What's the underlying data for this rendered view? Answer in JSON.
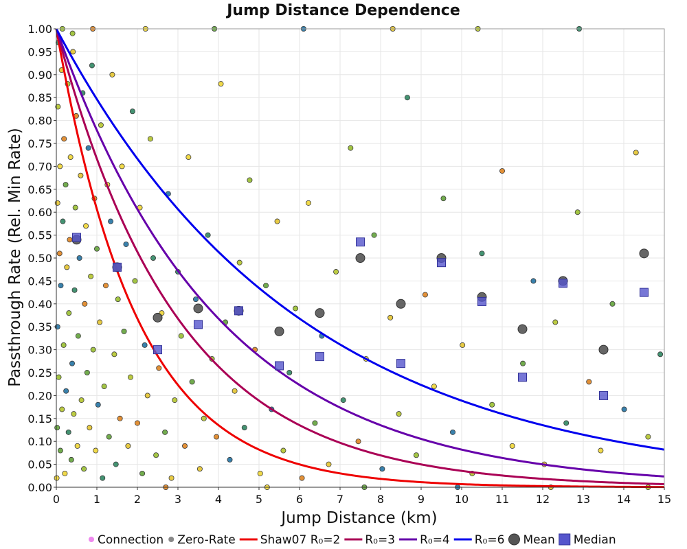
{
  "chart_data": {
    "type": "scatter",
    "title": "Jump Distance Dependence",
    "xlabel": "Jump Distance (km)",
    "ylabel": "Passthrough Rate (Rel. Min Rate)",
    "xlim": [
      0,
      15
    ],
    "ylim": [
      0,
      1
    ],
    "grid": true,
    "x_ticks": [
      0,
      1,
      2,
      3,
      4,
      5,
      6,
      7,
      8,
      9,
      10,
      11,
      12,
      13,
      14,
      15
    ],
    "x_tick_labels": [
      "0",
      "1",
      "2",
      "3",
      "4",
      "5",
      "6",
      "7",
      "8",
      "9",
      "10",
      "11",
      "12",
      "13",
      "14",
      "15"
    ],
    "y_ticks": [
      0,
      0.05,
      0.1,
      0.15,
      0.2,
      0.25,
      0.3,
      0.35,
      0.4,
      0.45,
      0.5,
      0.55,
      0.6,
      0.65,
      0.7,
      0.75,
      0.8,
      0.85,
      0.9,
      0.95,
      1.0
    ],
    "y_tick_labels": [
      "0.00",
      "0.05",
      "0.10",
      "0.15",
      "0.20",
      "0.25",
      "0.30",
      "0.35",
      "0.40",
      "0.45",
      "0.50",
      "0.55",
      "0.60",
      "0.65",
      "0.70",
      "0.75",
      "0.80",
      "0.85",
      "0.90",
      "0.95",
      "1.00"
    ],
    "legend_position": "bottom",
    "legend": [
      {
        "label": "Connection",
        "kind": "dot",
        "color": "#ee88ee"
      },
      {
        "label": "Zero-Rate",
        "kind": "dot",
        "color": "#888888"
      },
      {
        "label": "Shaw07 R₀=2",
        "kind": "line",
        "color": "#ee0000"
      },
      {
        "label": "R₀=3",
        "kind": "line",
        "color": "#aa0055"
      },
      {
        "label": "R₀=4",
        "kind": "line",
        "color": "#6600aa"
      },
      {
        "label": "R₀=6",
        "kind": "line",
        "color": "#0000ee"
      },
      {
        "label": "Mean",
        "kind": "circle",
        "color": "#555555"
      },
      {
        "label": "Median",
        "kind": "square",
        "color": "#5555cc"
      }
    ],
    "curves": [
      {
        "name": "Shaw07 R₀=2",
        "r0": 2,
        "color": "#ee0000"
      },
      {
        "name": "R₀=3",
        "r0": 3,
        "color": "#aa0055"
      },
      {
        "name": "R₀=4",
        "r0": 4,
        "color": "#6600aa"
      },
      {
        "name": "R₀=6",
        "r0": 6,
        "color": "#0000ee"
      }
    ],
    "mean": {
      "name": "Mean",
      "x": [
        0.5,
        1.5,
        2.5,
        3.5,
        4.5,
        5.5,
        6.5,
        7.5,
        8.5,
        9.5,
        10.5,
        11.5,
        12.5,
        13.5,
        14.5
      ],
      "y": [
        0.54,
        0.48,
        0.37,
        0.39,
        0.385,
        0.34,
        0.38,
        0.5,
        0.4,
        0.5,
        0.415,
        0.345,
        0.45,
        0.3,
        0.51
      ]
    },
    "median": {
      "name": "Median",
      "x": [
        0.5,
        1.5,
        2.5,
        3.5,
        4.5,
        5.5,
        6.5,
        7.5,
        8.5,
        9.5,
        10.5,
        11.5,
        12.5,
        13.5,
        14.5
      ],
      "y": [
        0.545,
        0.48,
        0.3,
        0.355,
        0.385,
        0.265,
        0.285,
        0.535,
        0.27,
        0.49,
        0.405,
        0.24,
        0.445,
        0.2,
        0.425
      ]
    },
    "scatter_series": {
      "name": "Connection",
      "colors": [
        "#6aa844",
        "#9ec23a",
        "#e6c73a",
        "#f0d840",
        "#3a8d6a",
        "#2e7aa8",
        "#e08a2c",
        "#b8c838"
      ],
      "points": [
        [
          0.01,
          0.02
        ],
        [
          0.02,
          0.13
        ],
        [
          0.03,
          0.35
        ],
        [
          0.03,
          0.62
        ],
        [
          0.04,
          0.83
        ],
        [
          0.05,
          0.97
        ],
        [
          0.06,
          0.24
        ],
        [
          0.08,
          0.51
        ],
        [
          0.09,
          0.7
        ],
        [
          0.1,
          0.08
        ],
        [
          0.11,
          0.44
        ],
        [
          0.13,
          0.91
        ],
        [
          0.14,
          0.17
        ],
        [
          0.16,
          0.58
        ],
        [
          0.18,
          0.31
        ],
        [
          0.19,
          0.76
        ],
        [
          0.21,
          0.03
        ],
        [
          0.23,
          0.66
        ],
        [
          0.24,
          0.21
        ],
        [
          0.26,
          0.48
        ],
        [
          0.28,
          0.88
        ],
        [
          0.3,
          0.12
        ],
        [
          0.31,
          0.38
        ],
        [
          0.33,
          0.54
        ],
        [
          0.35,
          0.72
        ],
        [
          0.37,
          0.06
        ],
        [
          0.39,
          0.27
        ],
        [
          0.41,
          0.95
        ],
        [
          0.43,
          0.16
        ],
        [
          0.45,
          0.43
        ],
        [
          0.47,
          0.61
        ],
        [
          0.49,
          0.81
        ],
        [
          0.52,
          0.09
        ],
        [
          0.54,
          0.33
        ],
        [
          0.57,
          0.5
        ],
        [
          0.6,
          0.68
        ],
        [
          0.62,
          0.19
        ],
        [
          0.65,
          0.86
        ],
        [
          0.68,
          0.04
        ],
        [
          0.7,
          0.4
        ],
        [
          0.73,
          0.57
        ],
        [
          0.76,
          0.25
        ],
        [
          0.79,
          0.74
        ],
        [
          0.82,
          0.13
        ],
        [
          0.85,
          0.46
        ],
        [
          0.88,
          0.92
        ],
        [
          0.91,
          0.3
        ],
        [
          0.94,
          0.63
        ],
        [
          0.97,
          0.08
        ],
        [
          1.0,
          0.52
        ],
        [
          1.03,
          0.18
        ],
        [
          1.07,
          0.36
        ],
        [
          1.1,
          0.79
        ],
        [
          1.14,
          0.02
        ],
        [
          1.18,
          0.22
        ],
        [
          1.22,
          0.44
        ],
        [
          1.26,
          0.66
        ],
        [
          1.3,
          0.11
        ],
        [
          1.34,
          0.58
        ],
        [
          1.38,
          0.9
        ],
        [
          1.43,
          0.29
        ],
        [
          1.47,
          0.05
        ],
        [
          1.52,
          0.41
        ],
        [
          1.57,
          0.15
        ],
        [
          1.62,
          0.7
        ],
        [
          1.67,
          0.34
        ],
        [
          1.72,
          0.53
        ],
        [
          1.77,
          0.09
        ],
        [
          1.83,
          0.24
        ],
        [
          1.88,
          0.82
        ],
        [
          1.94,
          0.45
        ],
        [
          2.0,
          0.14
        ],
        [
          2.06,
          0.61
        ],
        [
          2.12,
          0.03
        ],
        [
          2.18,
          0.31
        ],
        [
          2.25,
          0.2
        ],
        [
          2.32,
          0.76
        ],
        [
          2.39,
          0.5
        ],
        [
          2.46,
          0.07
        ],
        [
          2.53,
          0.26
        ],
        [
          2.6,
          0.38
        ],
        [
          2.68,
          0.12
        ],
        [
          2.76,
          0.64
        ],
        [
          2.84,
          0.02
        ],
        [
          2.92,
          0.19
        ],
        [
          3.0,
          0.47
        ],
        [
          3.08,
          0.33
        ],
        [
          3.17,
          0.09
        ],
        [
          3.26,
          0.72
        ],
        [
          3.35,
          0.23
        ],
        [
          3.44,
          0.41
        ],
        [
          3.54,
          0.04
        ],
        [
          3.64,
          0.15
        ],
        [
          3.74,
          0.55
        ],
        [
          3.84,
          0.28
        ],
        [
          3.95,
          0.11
        ],
        [
          4.06,
          0.88
        ],
        [
          4.17,
          0.36
        ],
        [
          4.28,
          0.06
        ],
        [
          4.4,
          0.21
        ],
        [
          4.52,
          0.49
        ],
        [
          4.64,
          0.13
        ],
        [
          4.77,
          0.67
        ],
        [
          4.9,
          0.3
        ],
        [
          5.03,
          0.03
        ],
        [
          5.17,
          0.44
        ],
        [
          5.31,
          0.17
        ],
        [
          5.45,
          0.58
        ],
        [
          5.6,
          0.08
        ],
        [
          5.75,
          0.25
        ],
        [
          5.9,
          0.39
        ],
        [
          6.06,
          0.02
        ],
        [
          6.22,
          0.62
        ],
        [
          6.38,
          0.14
        ],
        [
          6.55,
          0.33
        ],
        [
          6.72,
          0.05
        ],
        [
          6.9,
          0.47
        ],
        [
          7.08,
          0.19
        ],
        [
          7.26,
          0.74
        ],
        [
          7.45,
          0.1
        ],
        [
          7.64,
          0.28
        ],
        [
          7.84,
          0.55
        ],
        [
          8.04,
          0.04
        ],
        [
          8.24,
          0.37
        ],
        [
          8.45,
          0.16
        ],
        [
          8.66,
          0.85
        ],
        [
          8.88,
          0.07
        ],
        [
          9.1,
          0.42
        ],
        [
          9.32,
          0.22
        ],
        [
          9.55,
          0.63
        ],
        [
          9.78,
          0.12
        ],
        [
          10.02,
          0.31
        ],
        [
          10.26,
          0.03
        ],
        [
          10.5,
          0.51
        ],
        [
          10.75,
          0.18
        ],
        [
          11.0,
          0.69
        ],
        [
          11.25,
          0.09
        ],
        [
          11.51,
          0.27
        ],
        [
          11.77,
          0.45
        ],
        [
          12.04,
          0.05
        ],
        [
          12.31,
          0.36
        ],
        [
          12.58,
          0.14
        ],
        [
          12.86,
          0.6
        ],
        [
          13.14,
          0.23
        ],
        [
          13.43,
          0.08
        ],
        [
          13.72,
          0.4
        ],
        [
          14.01,
          0.17
        ],
        [
          14.3,
          0.73
        ],
        [
          14.6,
          0.11
        ],
        [
          14.9,
          0.29
        ],
        [
          0.15,
          1.0
        ],
        [
          0.9,
          1.0
        ],
        [
          2.2,
          1.0
        ],
        [
          3.9,
          1.0
        ],
        [
          6.1,
          1.0
        ],
        [
          8.3,
          1.0
        ],
        [
          10.4,
          1.0
        ],
        [
          12.9,
          1.0
        ],
        [
          0.4,
          0.99
        ],
        [
          2.7,
          0.0
        ],
        [
          5.2,
          0.0
        ],
        [
          7.6,
          0.0
        ],
        [
          9.9,
          0.0
        ],
        [
          12.2,
          0.0
        ],
        [
          14.6,
          0.0
        ]
      ]
    }
  }
}
